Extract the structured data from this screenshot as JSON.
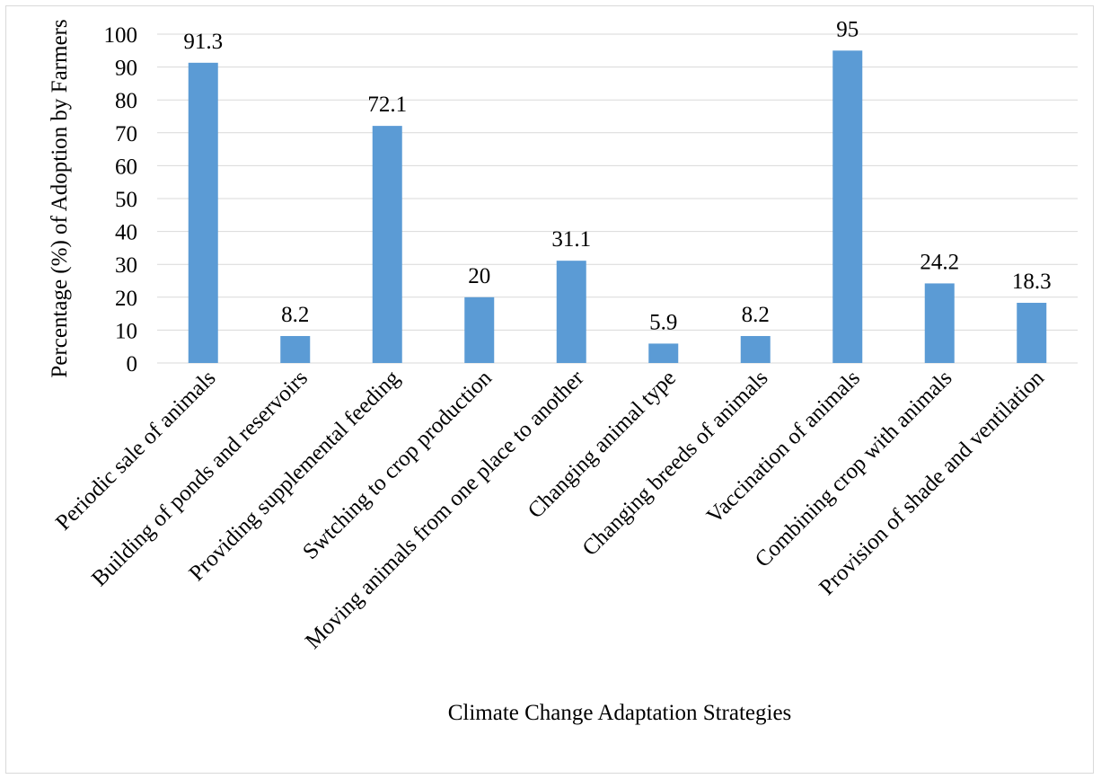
{
  "chart_data": {
    "type": "bar",
    "categories": [
      "Periodic sale of animals",
      "Building of ponds and reservoirs",
      "Providing supplemental feeding",
      "Swtching to crop production",
      "Moving animals from one place to another",
      "Changing animal type",
      "Changing breeds of animals",
      "Vaccination of animals",
      "Combining crop with animals",
      "Provision of shade and ventilation"
    ],
    "values": [
      91.3,
      8.2,
      72.1,
      20,
      31.1,
      5.9,
      8.2,
      95,
      24.2,
      18.3
    ],
    "value_labels": [
      "91.3",
      "8.2",
      "72.1",
      "20",
      "31.1",
      "5.9",
      "8.2",
      "95",
      "24.2",
      "18.3"
    ],
    "xlabel": "Climate Change Adaptation Strategies",
    "ylabel": "Percentage (%) of Adoption by Farmers",
    "ylim": [
      0,
      100
    ],
    "yticks": [
      0,
      10,
      20,
      30,
      40,
      50,
      60,
      70,
      80,
      90,
      100
    ],
    "grid": true,
    "legend": "none",
    "bar_color": "#5b9bd5",
    "grid_color": "#d9d9d9"
  }
}
